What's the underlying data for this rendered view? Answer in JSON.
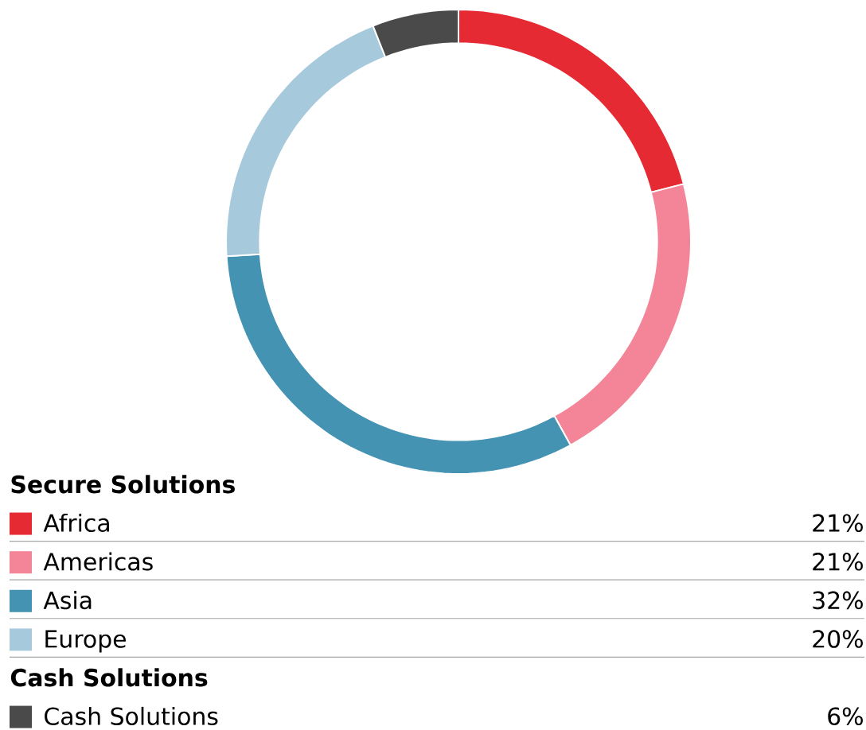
{
  "chart_data": {
    "type": "donut",
    "categories": [
      "Africa",
      "Americas",
      "Asia",
      "Europe",
      "Cash Solutions"
    ],
    "values": [
      21,
      21,
      32,
      20,
      6
    ],
    "value_labels": [
      "21%",
      "21%",
      "32%",
      "20%",
      "6%"
    ],
    "colors": [
      "#e52a34",
      "#f48497",
      "#4593b3",
      "#a7c9dc",
      "#4a4a4a"
    ],
    "annotations": [
      "Secure Solutions",
      "Cash Solutions"
    ],
    "legend": "bottom"
  }
}
